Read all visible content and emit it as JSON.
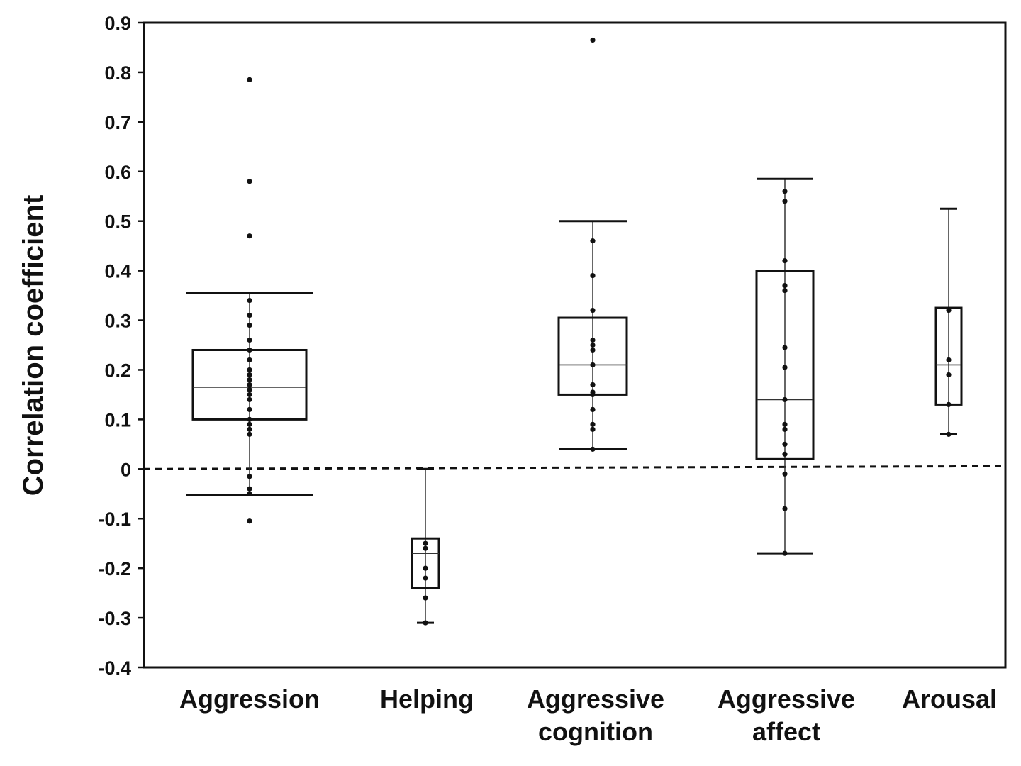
{
  "chart_data": {
    "type": "box",
    "title": "",
    "xlabel": "",
    "ylabel": "Correlation coefficient",
    "ylim": [
      -0.4,
      0.9
    ],
    "yticks": [
      "0.9",
      "0.8",
      "0.7",
      "0.6",
      "0.5",
      "0.4",
      "0.3",
      "0.2",
      "0.1",
      "0",
      "-0.1",
      "-0.2",
      "-0.3",
      "-0.4"
    ],
    "reference_line": {
      "value": 0,
      "style": "dashed"
    },
    "grid": false,
    "categories": [
      {
        "lines": [
          "Aggression"
        ]
      },
      {
        "lines": [
          "Helping"
        ]
      },
      {
        "lines": [
          "Aggressive",
          "cognition"
        ]
      },
      {
        "lines": [
          "Aggressive",
          "affect"
        ]
      },
      {
        "lines": [
          "Arousal"
        ]
      }
    ],
    "boxes": [
      {
        "name": "Aggression",
        "whisker_low": -0.053,
        "q1": 0.1,
        "median": 0.165,
        "q3": 0.24,
        "whisker_high": 0.355,
        "points": [
          0.785,
          0.58,
          0.47,
          0.34,
          0.31,
          0.29,
          0.26,
          0.24,
          0.22,
          0.2,
          0.19,
          0.18,
          0.17,
          0.16,
          0.15,
          0.14,
          0.12,
          0.1,
          0.09,
          0.08,
          0.07,
          -0.015,
          -0.04,
          -0.05,
          -0.105
        ]
      },
      {
        "name": "Helping",
        "whisker_low": -0.31,
        "q1": -0.24,
        "median": -0.17,
        "q3": -0.14,
        "whisker_high": 0.0,
        "points": [
          -0.15,
          -0.16,
          -0.2,
          -0.22,
          -0.26,
          -0.31
        ]
      },
      {
        "name": "Aggressive cognition",
        "whisker_low": 0.04,
        "q1": 0.15,
        "median": 0.21,
        "q3": 0.305,
        "whisker_high": 0.5,
        "points": [
          0.865,
          0.46,
          0.39,
          0.32,
          0.26,
          0.25,
          0.24,
          0.21,
          0.17,
          0.155,
          0.15,
          0.12,
          0.09,
          0.08,
          0.04
        ]
      },
      {
        "name": "Aggressive affect",
        "whisker_low": -0.17,
        "q1": 0.02,
        "median": 0.14,
        "q3": 0.4,
        "whisker_high": 0.585,
        "points": [
          0.56,
          0.54,
          0.42,
          0.37,
          0.36,
          0.245,
          0.205,
          0.14,
          0.09,
          0.08,
          0.05,
          0.03,
          -0.01,
          -0.08,
          -0.17
        ]
      },
      {
        "name": "Arousal",
        "whisker_low": 0.07,
        "q1": 0.13,
        "median": 0.21,
        "q3": 0.325,
        "whisker_high": 0.525,
        "points": [
          0.32,
          0.22,
          0.19,
          0.13,
          0.07
        ]
      }
    ]
  }
}
